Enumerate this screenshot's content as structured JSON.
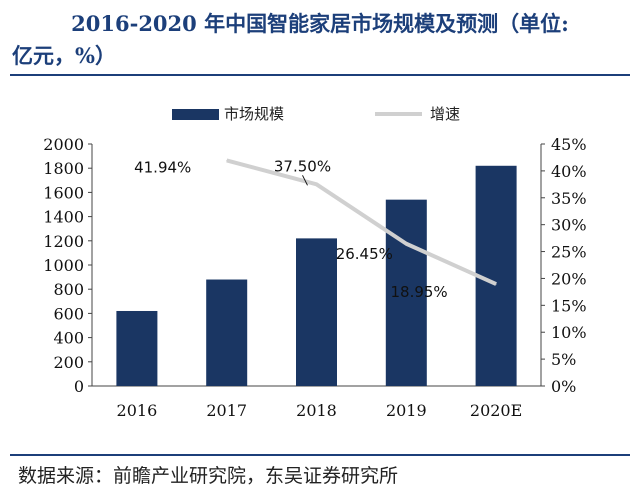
{
  "title_line1": "2016-2020 年中国智能家居市场规模及预测（单位:",
  "title_line2": "亿元，%）",
  "source": "数据来源：前瞻产业研究院，东吴证券研究所",
  "colors": {
    "bar": "#1a3663",
    "line": "#d0d0d0",
    "title": "#1c3f7a"
  },
  "chart_data": {
    "type": "bar+line",
    "categories": [
      "2016",
      "2017",
      "2018",
      "2019",
      "2020E"
    ],
    "series": [
      {
        "name": "市场规模",
        "type": "bar",
        "axis": "left",
        "values": [
          620,
          880,
          1220,
          1540,
          1820
        ]
      },
      {
        "name": "增速",
        "type": "line",
        "axis": "right",
        "values": [
          null,
          41.94,
          37.5,
          26.45,
          18.95
        ],
        "labels": [
          "",
          "41.94%",
          "37.50%",
          "26.45%",
          "18.95%"
        ]
      }
    ],
    "y_left": {
      "min": 0,
      "max": 2000,
      "ticks": [
        "0",
        "200",
        "400",
        "600",
        "800",
        "1000",
        "1200",
        "1400",
        "1600",
        "1800",
        "2000"
      ]
    },
    "y_right": {
      "min": 0,
      "max": 45,
      "ticks": [
        "0%",
        "5%",
        "10%",
        "15%",
        "20%",
        "25%",
        "30%",
        "35%",
        "40%",
        "45%"
      ]
    },
    "legend_position": "top-center",
    "grid": false
  }
}
